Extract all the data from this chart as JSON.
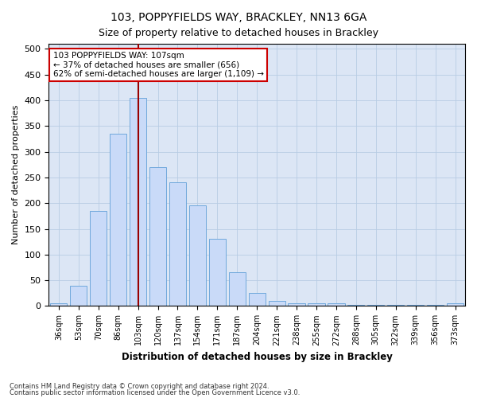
{
  "title": "103, POPPYFIELDS WAY, BRACKLEY, NN13 6GA",
  "subtitle": "Size of property relative to detached houses in Brackley",
  "xlabel": "Distribution of detached houses by size in Brackley",
  "ylabel": "Number of detached properties",
  "footer_line1": "Contains HM Land Registry data © Crown copyright and database right 2024.",
  "footer_line2": "Contains public sector information licensed under the Open Government Licence v3.0.",
  "categories": [
    "36sqm",
    "53sqm",
    "70sqm",
    "86sqm",
    "103sqm",
    "120sqm",
    "137sqm",
    "154sqm",
    "171sqm",
    "187sqm",
    "204sqm",
    "221sqm",
    "238sqm",
    "255sqm",
    "272sqm",
    "288sqm",
    "305sqm",
    "322sqm",
    "339sqm",
    "356sqm",
    "373sqm"
  ],
  "values": [
    5,
    40,
    185,
    335,
    405,
    270,
    240,
    195,
    130,
    65,
    25,
    10,
    5,
    5,
    5,
    3,
    3,
    3,
    3,
    3,
    5
  ],
  "bar_color": "#c9daf8",
  "bar_edge_color": "#6fa8dc",
  "vline_x": 4,
  "vline_color": "#990000",
  "annotation_text": "103 POPPYFIELDS WAY: 107sqm\n← 37% of detached houses are smaller (656)\n62% of semi-detached houses are larger (1,109) →",
  "annotation_box_color": "#ffffff",
  "annotation_box_edge": "#cc0000",
  "ylim": [
    0,
    510
  ],
  "yticks": [
    0,
    50,
    100,
    150,
    200,
    250,
    300,
    350,
    400,
    450,
    500
  ],
  "background_color": "#ffffff",
  "plot_bg_color": "#dce6f5",
  "grid_color": "#b8cce4"
}
